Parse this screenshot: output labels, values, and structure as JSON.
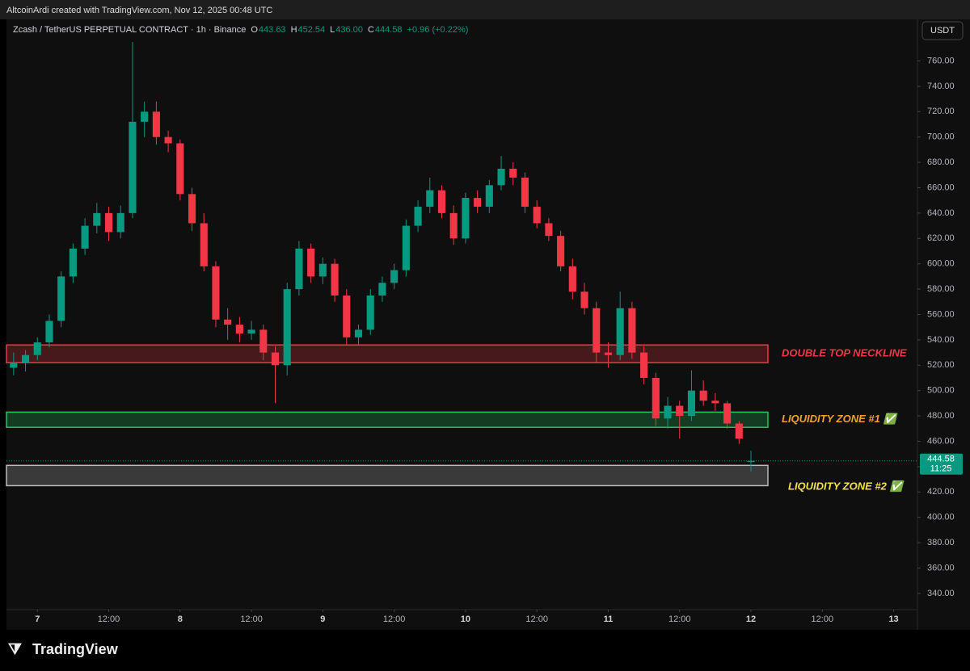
{
  "header": {
    "credit": "AltcoinArdi created with TradingView.com, Nov 12, 2025 00:48 UTC",
    "symbol": "Zcash / TetherUS PERPETUAL CONTRACT · 1h · Binance",
    "ohlc": [
      {
        "key": "O",
        "value": "443.63"
      },
      {
        "key": "H",
        "value": "452.54"
      },
      {
        "key": "L",
        "value": "436.00"
      },
      {
        "key": "C",
        "value": "444.58"
      }
    ],
    "change": "+0.96 (+0.22%)",
    "currency": "USDT"
  },
  "footer": {
    "brand": "TradingView"
  },
  "chart_data": {
    "type": "candlestick",
    "x": [
      -4,
      -2,
      0,
      2,
      4,
      6,
      8,
      10,
      12,
      14,
      16,
      18,
      20,
      22,
      24,
      26,
      28,
      30,
      32,
      34,
      36,
      38,
      40,
      42,
      44,
      46,
      48,
      50,
      52,
      54,
      56,
      58,
      60,
      62,
      64,
      66,
      68,
      70,
      72,
      74,
      76,
      78,
      80,
      82,
      84,
      86,
      88,
      90,
      92,
      94,
      96,
      98,
      100,
      102,
      104,
      106,
      108,
      110,
      112,
      114,
      116,
      118,
      120
    ],
    "open": [
      518,
      522,
      528,
      538,
      555,
      590,
      612,
      630,
      640,
      625,
      640,
      712,
      720,
      700,
      695,
      655,
      632,
      598,
      556,
      552,
      545,
      548,
      530,
      520,
      580,
      612,
      590,
      600,
      575,
      542,
      548,
      575,
      585,
      595,
      630,
      645,
      658,
      640,
      620,
      652,
      645,
      662,
      675,
      668,
      645,
      632,
      622,
      598,
      578,
      565,
      530,
      528,
      565,
      530,
      510,
      478,
      488,
      480,
      500,
      492,
      490,
      474,
      443.63
    ],
    "high": [
      530,
      532,
      542,
      560,
      594,
      616,
      636,
      648,
      645,
      646,
      775,
      728,
      728,
      705,
      698,
      660,
      640,
      602,
      565,
      558,
      555,
      552,
      535,
      585,
      618,
      616,
      605,
      604,
      580,
      552,
      580,
      590,
      600,
      635,
      650,
      668,
      662,
      646,
      656,
      658,
      666,
      685,
      680,
      672,
      650,
      636,
      626,
      604,
      585,
      570,
      538,
      578,
      570,
      535,
      514,
      495,
      492,
      516,
      508,
      498,
      492,
      476,
      452.54
    ],
    "low": [
      512,
      515,
      524,
      534,
      550,
      585,
      607,
      624,
      618,
      620,
      636,
      700,
      694,
      688,
      650,
      626,
      594,
      550,
      540,
      538,
      540,
      524,
      490,
      512,
      575,
      585,
      584,
      570,
      536,
      536,
      544,
      570,
      580,
      590,
      625,
      640,
      636,
      615,
      616,
      640,
      640,
      658,
      662,
      640,
      628,
      618,
      594,
      572,
      560,
      522,
      518,
      524,
      525,
      505,
      472,
      470,
      462,
      476,
      488,
      484,
      470,
      458,
      436
    ],
    "close": [
      522,
      528,
      538,
      555,
      590,
      612,
      630,
      640,
      625,
      640,
      712,
      720,
      700,
      695,
      655,
      632,
      598,
      556,
      552,
      545,
      548,
      530,
      520,
      580,
      612,
      590,
      600,
      575,
      542,
      548,
      575,
      585,
      595,
      630,
      645,
      658,
      640,
      620,
      652,
      645,
      662,
      675,
      668,
      645,
      632,
      622,
      598,
      578,
      565,
      530,
      528,
      565,
      530,
      510,
      478,
      488,
      480,
      500,
      492,
      490,
      474,
      462,
      444.58
    ],
    "up_color": "#089981",
    "down_color": "#f23645",
    "last_price": 444.58,
    "last_label": "444.58",
    "countdown": "11:25",
    "xlim": [
      -5.2,
      148
    ],
    "xticks": [
      {
        "value": 0,
        "label": "7"
      },
      {
        "value": 12,
        "label": "12:00"
      },
      {
        "value": 24,
        "label": "8"
      },
      {
        "value": 36,
        "label": "12:00"
      },
      {
        "value": 48,
        "label": "9"
      },
      {
        "value": 60,
        "label": "12:00"
      },
      {
        "value": 72,
        "label": "10"
      },
      {
        "value": 84,
        "label": "12:00"
      },
      {
        "value": 96,
        "label": "11"
      },
      {
        "value": 108,
        "label": "12:00"
      },
      {
        "value": 120,
        "label": "12"
      },
      {
        "value": 132,
        "label": "12:00"
      },
      {
        "value": 144,
        "label": "13"
      }
    ],
    "ylim": [
      327.2,
      792.8
    ],
    "yticks": [
      {
        "value": 340,
        "label": "340.00"
      },
      {
        "value": 360,
        "label": "360.00"
      },
      {
        "value": 380,
        "label": "380.00"
      },
      {
        "value": 400,
        "label": "400.00"
      },
      {
        "value": 420,
        "label": "420.00"
      },
      {
        "value": 440,
        "label": "440.00"
      },
      {
        "value": 460,
        "label": "460.00"
      },
      {
        "value": 480,
        "label": "480.00"
      },
      {
        "value": 500,
        "label": "500.00"
      },
      {
        "value": 520,
        "label": "520.00"
      },
      {
        "value": 540,
        "label": "540.00"
      },
      {
        "value": 560,
        "label": "560.00"
      },
      {
        "value": 580,
        "label": "580.00"
      },
      {
        "value": 600,
        "label": "600.00"
      },
      {
        "value": 620,
        "label": "620.00"
      },
      {
        "value": 640,
        "label": "640.00"
      },
      {
        "value": 660,
        "label": "660.00"
      },
      {
        "value": 680,
        "label": "680.00"
      },
      {
        "value": 700,
        "label": "700.00"
      },
      {
        "value": 720,
        "label": "720.00"
      },
      {
        "value": 740,
        "label": "740.00"
      },
      {
        "value": 760,
        "label": "760.00"
      }
    ],
    "zones": [
      {
        "label": "DOUBLE TOP NECKLINE",
        "low": 522,
        "high": 536,
        "color": "#f23645",
        "text_color": "#f23645"
      },
      {
        "label": "LIQUIDITY ZONE #1 ✅",
        "low": 471,
        "high": 483,
        "color": "#22c55e",
        "text_color": "#f0a030"
      },
      {
        "label": "LIQUIDITY ZONE #2 ✅",
        "low": 425,
        "high": 441,
        "color": "#bbbbbb",
        "text_color": "#f2e14c"
      }
    ],
    "grid": false
  }
}
